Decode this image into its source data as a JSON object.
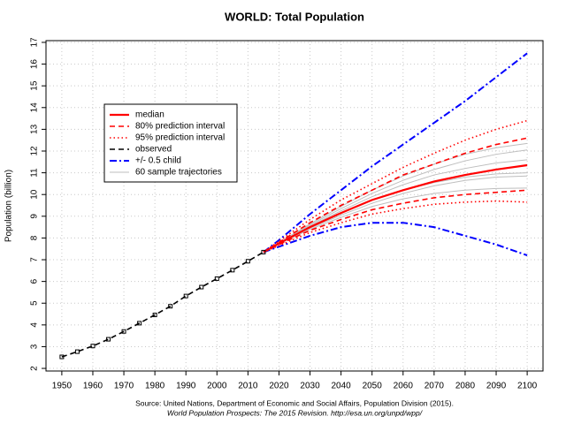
{
  "chart_data": {
    "type": "line",
    "title": "WORLD: Total Population",
    "y_label": "Population (billion)",
    "source": [
      "Source: United Nations, Department of Economic and Social Affairs, Population Division (2015).",
      "World Population Prospects: The 2015 Revision. http://esa.un.org/unpd/wpp/"
    ],
    "xlim": [
      1944.9,
      2105.1
    ],
    "ylim": [
      1.88,
      17.08
    ],
    "xticks": [
      1950,
      1960,
      1970,
      1980,
      1990,
      2000,
      2010,
      2020,
      2030,
      2040,
      2050,
      2060,
      2070,
      2080,
      2090,
      2100
    ],
    "yticks": [
      2,
      3,
      4,
      5,
      6,
      7,
      8,
      9,
      10,
      11,
      12,
      13,
      14,
      15,
      16,
      17
    ],
    "grid": true,
    "series": [
      {
        "name": "median",
        "color": "#ff0000",
        "line_style": "solid",
        "width": 2.2,
        "x": [
          2015,
          2020,
          2030,
          2040,
          2050,
          2060,
          2070,
          2080,
          2090,
          2100
        ],
        "values": [
          7.35,
          7.75,
          8.5,
          9.15,
          9.75,
          10.2,
          10.6,
          10.9,
          11.15,
          11.35
        ]
      },
      {
        "name": "80% prediction interval",
        "color": "#ff0000",
        "line_style": "dashed",
        "width": 1.6,
        "x": [
          2015,
          2020,
          2030,
          2040,
          2050,
          2060,
          2070,
          2080,
          2090,
          2100
        ],
        "upper": [
          7.35,
          7.8,
          8.7,
          9.5,
          10.2,
          10.9,
          11.4,
          11.9,
          12.3,
          12.6
        ],
        "lower": [
          7.35,
          7.7,
          8.35,
          8.85,
          9.3,
          9.6,
          9.85,
          10.0,
          10.1,
          10.2
        ]
      },
      {
        "name": "95% prediction interval",
        "color": "#ff0000",
        "line_style": "dotted",
        "width": 1.6,
        "x": [
          2015,
          2020,
          2030,
          2040,
          2050,
          2060,
          2070,
          2080,
          2090,
          2100
        ],
        "upper": [
          7.35,
          7.85,
          8.85,
          9.75,
          10.5,
          11.25,
          11.9,
          12.5,
          13.0,
          13.4
        ],
        "lower": [
          7.35,
          7.65,
          8.25,
          8.7,
          9.1,
          9.35,
          9.55,
          9.65,
          9.7,
          9.65
        ]
      },
      {
        "name": "observed",
        "color": "#000000",
        "line_style": "dashed",
        "width": 1.6,
        "marker": "square",
        "x": [
          1950,
          1955,
          1960,
          1965,
          1970,
          1975,
          1980,
          1985,
          1990,
          1995,
          2000,
          2005,
          2010,
          2015
        ],
        "values": [
          2.53,
          2.77,
          3.03,
          3.34,
          3.7,
          4.08,
          4.46,
          4.86,
          5.33,
          5.74,
          6.13,
          6.52,
          6.93,
          7.35
        ]
      },
      {
        "name": "+/- 0.5 child",
        "color": "#0000ff",
        "line_style": "dashdot",
        "width": 2,
        "x": [
          2015,
          2020,
          2030,
          2040,
          2050,
          2060,
          2070,
          2080,
          2090,
          2100
        ],
        "upper": [
          7.35,
          7.9,
          9.1,
          10.2,
          11.3,
          12.3,
          13.3,
          14.3,
          15.4,
          16.5
        ],
        "lower": [
          7.35,
          7.6,
          8.1,
          8.5,
          8.7,
          8.7,
          8.5,
          8.1,
          7.7,
          7.2
        ]
      },
      {
        "name": "60 sample trajectories",
        "color": "#bebebe",
        "line_style": "solid",
        "width": 1,
        "x": [
          2015,
          2020,
          2030,
          2040,
          2050,
          2060,
          2070,
          2080,
          2090,
          2100
        ],
        "trajectories": [
          [
            7.35,
            7.72,
            8.4,
            8.95,
            9.45,
            9.8,
            10.05,
            10.2,
            10.28,
            10.3
          ],
          [
            7.35,
            7.74,
            8.45,
            9.05,
            9.6,
            10.05,
            10.4,
            10.65,
            10.8,
            10.85
          ],
          [
            7.35,
            7.76,
            8.5,
            9.15,
            9.75,
            10.2,
            10.55,
            10.8,
            10.95,
            11.0
          ],
          [
            7.35,
            7.77,
            8.55,
            9.25,
            9.9,
            10.45,
            10.9,
            11.2,
            11.45,
            11.6
          ],
          [
            7.35,
            7.78,
            8.6,
            9.35,
            10.05,
            10.65,
            11.15,
            11.55,
            11.85,
            12.05
          ],
          [
            7.35,
            7.79,
            8.65,
            9.45,
            10.2,
            10.85,
            11.4,
            11.85,
            12.15,
            12.35
          ]
        ]
      }
    ]
  }
}
